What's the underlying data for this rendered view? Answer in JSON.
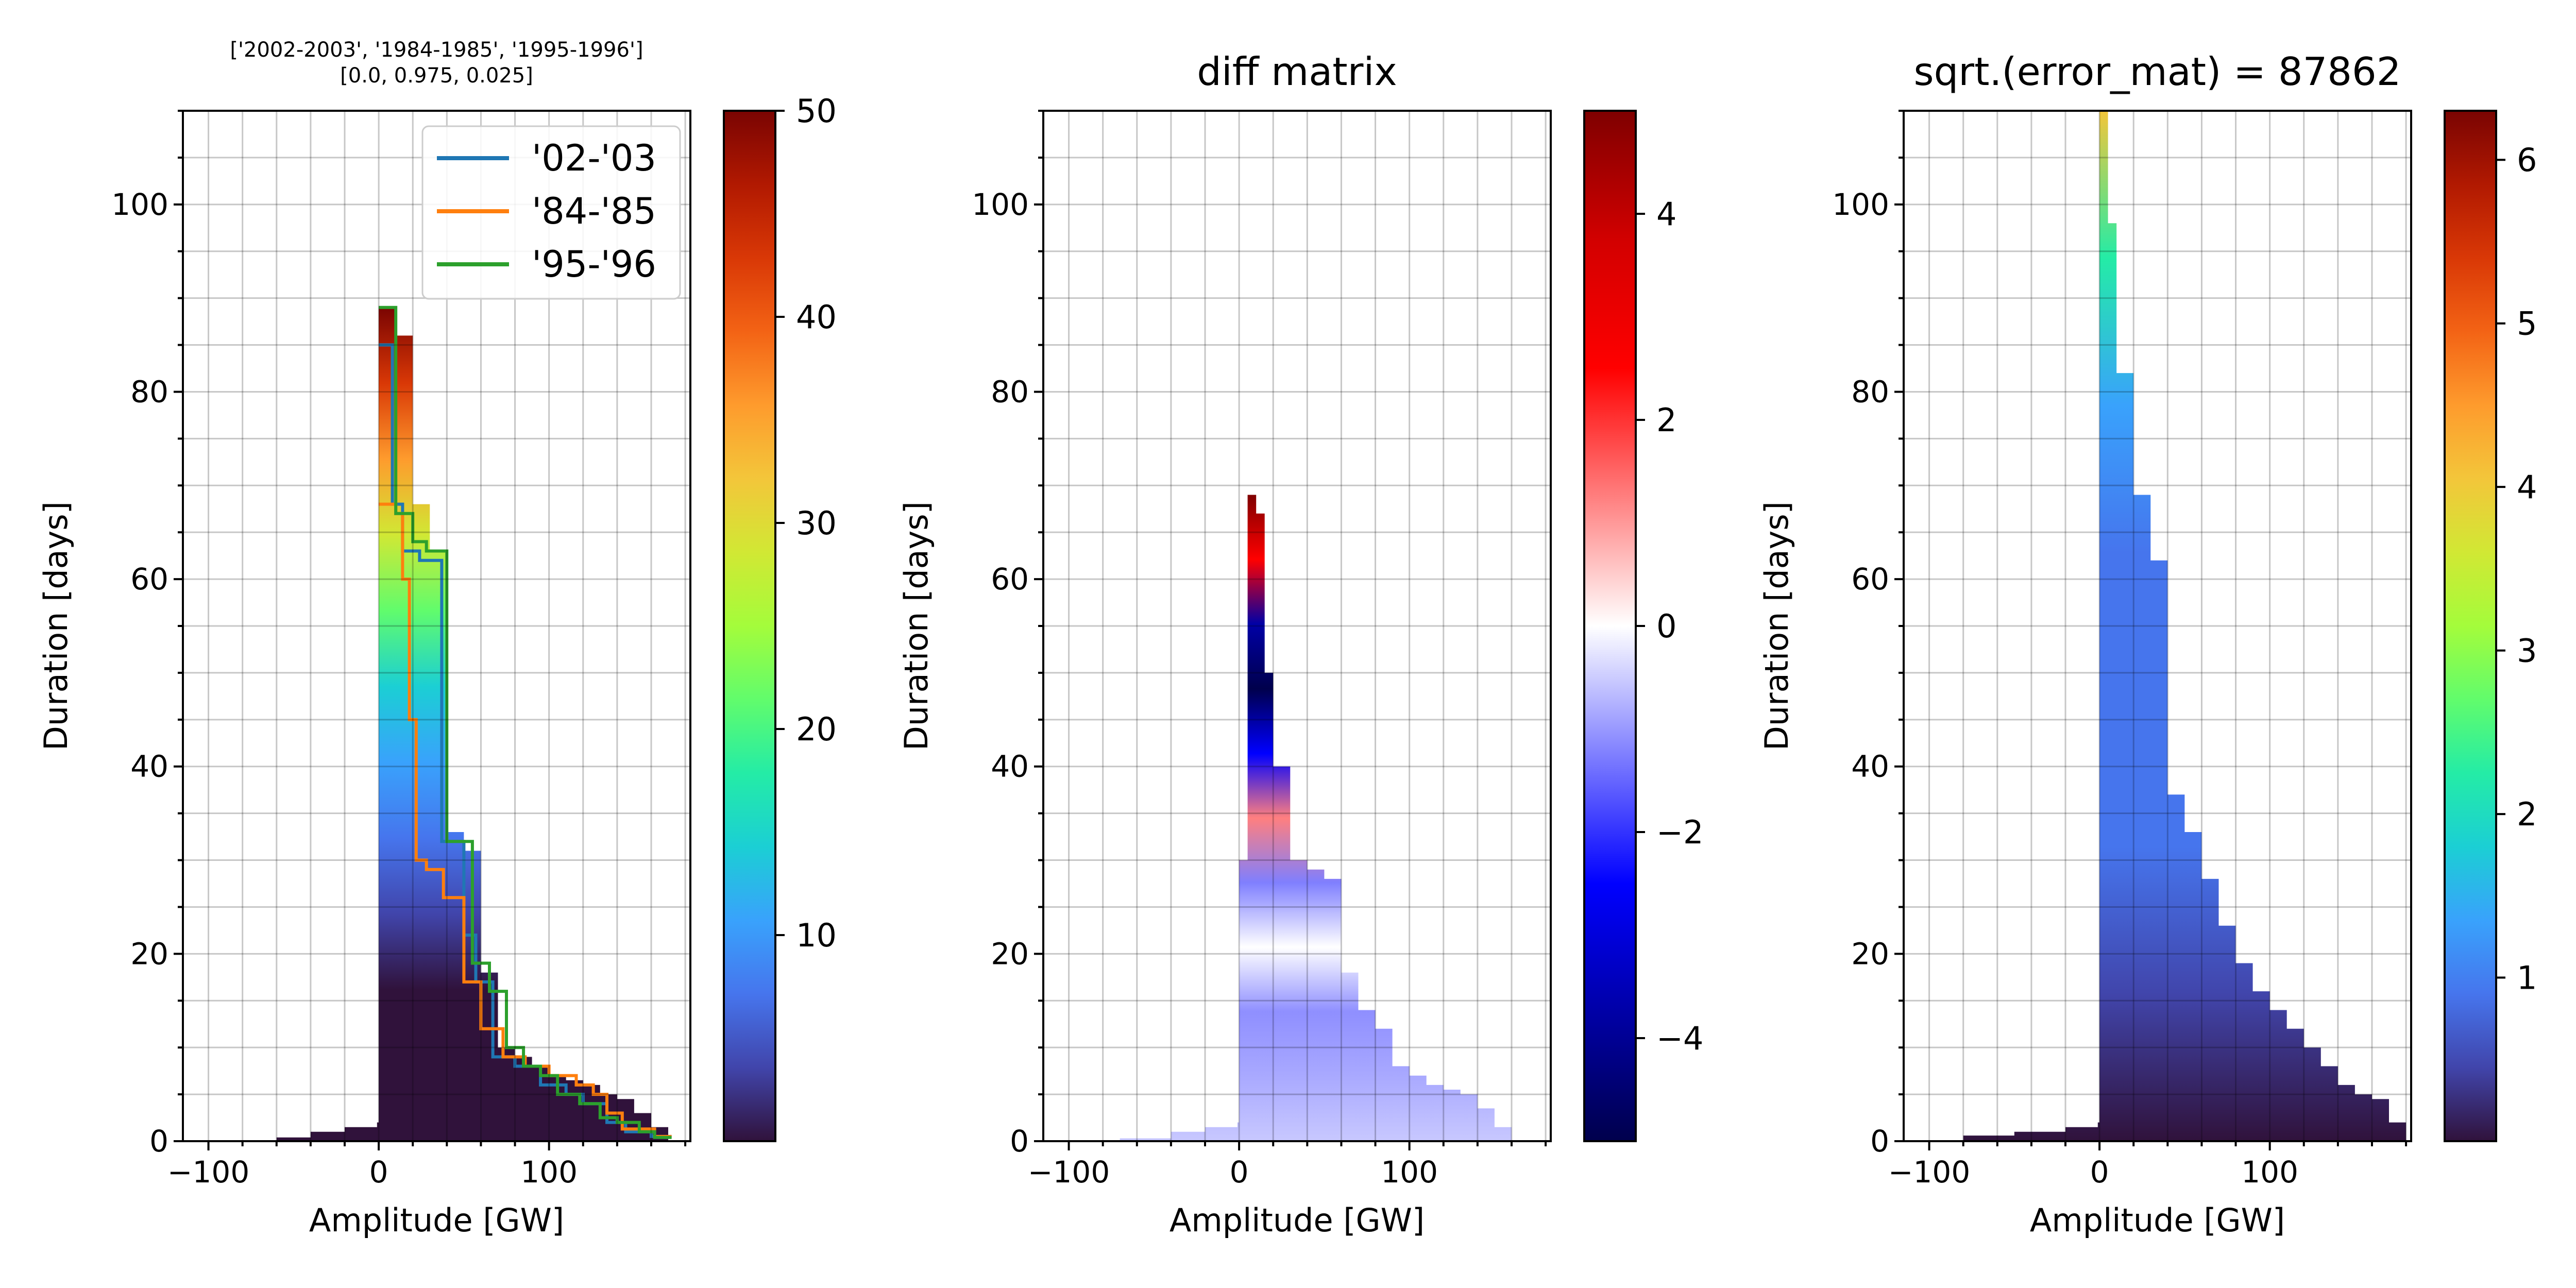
{
  "figure": {
    "background": "#ffffff",
    "grid": true
  },
  "colormaps": {
    "turbo": [
      "#30123b",
      "#4145ab",
      "#4675ed",
      "#39a2fc",
      "#1bcfd4",
      "#24eca6",
      "#61fc6c",
      "#a4fc3b",
      "#d1e834",
      "#f3c63a",
      "#fe9b2d",
      "#f36315",
      "#d93806",
      "#b11901",
      "#7a0402"
    ],
    "seismic": [
      "#00004c",
      "#0000a6",
      "#0000ff",
      "#7f7fff",
      "#ffffff",
      "#ff7f7f",
      "#ff0000",
      "#d20000",
      "#7f0000"
    ]
  },
  "chart_data": [
    {
      "type": "heatmap",
      "title": "['2002-2003', '1984-1985', '1995-1996']\n[0.0, 0.975, 0.025]",
      "xlabel": "Amplitude [GW]",
      "ylabel": "Duration [days]",
      "xlim": [
        -115,
        183
      ],
      "ylim": [
        0,
        110
      ],
      "xticks": [
        -100,
        0,
        100
      ],
      "yticks": [
        0,
        20,
        40,
        60,
        80,
        100
      ],
      "colorbar": {
        "cmap": "turbo",
        "min": 0,
        "max": 50,
        "ticks": [
          10,
          20,
          30,
          40,
          50
        ]
      },
      "profile": {
        "x": [
          -85,
          -60,
          -40,
          -20,
          -1,
          0,
          10,
          20,
          30,
          40,
          50,
          60,
          70,
          80,
          90,
          100,
          110,
          120,
          130,
          140,
          150,
          160,
          170
        ],
        "top": [
          0,
          0.4,
          1.0,
          1.5,
          2.0,
          89,
          86,
          68,
          63,
          33,
          31,
          18,
          10,
          9,
          8,
          7,
          6.5,
          6,
          5,
          4.5,
          3,
          1.5,
          0.3
        ]
      },
      "series": [
        {
          "name": "'02-'03",
          "color": "#1f77b4",
          "x": [
            0,
            8,
            8,
            14,
            14,
            24,
            24,
            37,
            37,
            50,
            50,
            57,
            57,
            67,
            67,
            80,
            80,
            95,
            95,
            110,
            110,
            120,
            120,
            134,
            134,
            145,
            145,
            160,
            160,
            172
          ],
          "y": [
            85,
            85,
            68,
            68,
            63,
            63,
            62,
            62,
            32,
            32,
            22,
            22,
            17,
            17,
            9,
            9,
            8,
            8,
            6,
            6,
            5,
            5,
            4,
            4,
            2,
            2,
            1,
            1,
            0.5,
            0.5
          ]
        },
        {
          "name": "'84-'85",
          "color": "#ff7f0e",
          "x": [
            0,
            10,
            10,
            14,
            14,
            18,
            18,
            22,
            22,
            28,
            28,
            38,
            38,
            50,
            50,
            60,
            60,
            73,
            73,
            86,
            86,
            100,
            100,
            116,
            116,
            126,
            126,
            134,
            134,
            143,
            143,
            162,
            162,
            172
          ],
          "y": [
            68,
            68,
            67,
            67,
            60,
            60,
            45,
            45,
            30,
            30,
            29,
            29,
            26,
            26,
            17,
            17,
            12,
            12,
            9,
            9,
            8,
            8,
            7,
            7,
            6,
            6,
            5,
            5,
            3,
            3,
            1.3,
            1.3,
            0.5,
            0.5
          ]
        },
        {
          "name": "'95-'96",
          "color": "#2ca02c",
          "x": [
            0,
            10,
            10,
            20,
            20,
            28,
            28,
            40,
            40,
            55,
            55,
            65,
            65,
            75,
            75,
            85,
            85,
            95,
            95,
            105,
            105,
            118,
            118,
            130,
            130,
            140,
            140,
            153,
            153,
            162,
            162,
            172
          ],
          "y": [
            89,
            89,
            67,
            67,
            64,
            64,
            63,
            63,
            32,
            32,
            19,
            19,
            16,
            16,
            10,
            10,
            8,
            8,
            7,
            7,
            5,
            5,
            4,
            4,
            2.5,
            2.5,
            2,
            2,
            1,
            1,
            0.4,
            0.4
          ]
        }
      ]
    },
    {
      "type": "heatmap",
      "title": "diff matrix",
      "xlabel": "Amplitude [GW]",
      "ylabel": "Duration [days]",
      "xlim": [
        -115,
        183
      ],
      "ylim": [
        0,
        110
      ],
      "xticks": [
        -100,
        0,
        100
      ],
      "yticks": [
        0,
        20,
        40,
        60,
        80,
        100
      ],
      "colorbar": {
        "cmap": "seismic",
        "min": -5,
        "max": 5,
        "ticks": [
          -4,
          -2,
          0,
          2,
          4
        ]
      },
      "profile": {
        "x": [
          -100,
          -70,
          -40,
          -20,
          -1,
          0,
          5,
          10,
          15,
          20,
          30,
          40,
          50,
          60,
          70,
          80,
          90,
          100,
          110,
          120,
          130,
          140,
          150,
          160
        ],
        "top": [
          0,
          0.3,
          1.0,
          1.5,
          2.0,
          30,
          69,
          67,
          50,
          40,
          30,
          29,
          28,
          18,
          14,
          12,
          8,
          7,
          6,
          5.5,
          5,
          3.5,
          1.5,
          0.5
        ]
      }
    },
    {
      "type": "heatmap",
      "title": "sqrt.(error_mat) = 87862",
      "xlabel": "Amplitude [GW]",
      "ylabel": "Duration [days]",
      "xlim": [
        -115,
        183
      ],
      "ylim": [
        0,
        110
      ],
      "xticks": [
        -100,
        0,
        100
      ],
      "yticks": [
        0,
        20,
        40,
        60,
        80,
        100
      ],
      "colorbar": {
        "cmap": "turbo",
        "min": 0,
        "max": 6.3,
        "ticks": [
          1,
          2,
          3,
          4,
          5,
          6
        ]
      },
      "profile": {
        "x": [
          -110,
          -80,
          -50,
          -20,
          -1,
          0,
          5,
          10,
          20,
          30,
          40,
          50,
          60,
          70,
          80,
          90,
          100,
          110,
          120,
          130,
          140,
          150,
          160,
          170,
          180
        ],
        "top": [
          0,
          0.6,
          1.0,
          1.5,
          2.0,
          110,
          98,
          82,
          69,
          62,
          37,
          33,
          28,
          23,
          19,
          16,
          14,
          12,
          10,
          8,
          6,
          5,
          4.5,
          2,
          1
        ]
      }
    }
  ]
}
